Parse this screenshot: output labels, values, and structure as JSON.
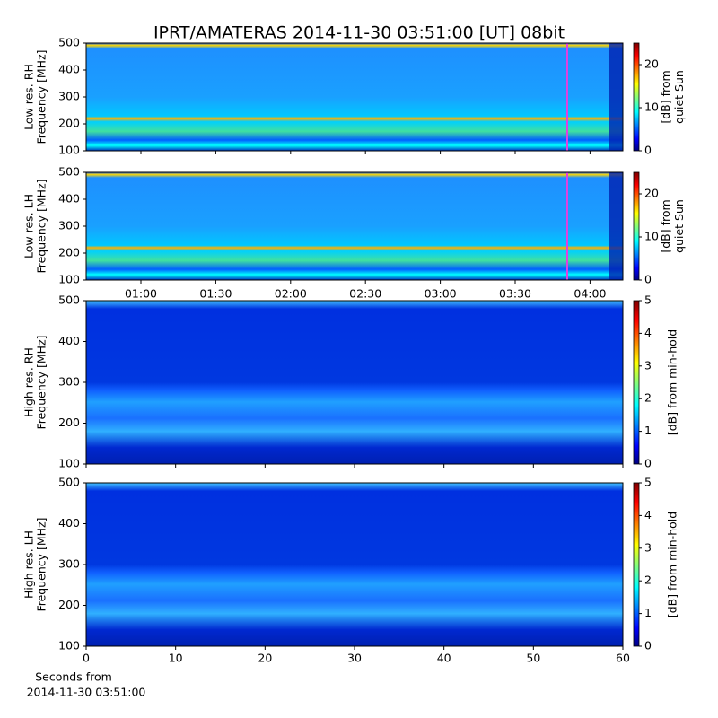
{
  "title": "IPRT/AMATERAS 2014-11-30 03:51:00 [UT]   08bit",
  "chart_data": [
    {
      "type": "heatmap",
      "ylabel": [
        "Low res. RH",
        "Frequency [MHz]"
      ],
      "ylim": [
        100,
        500
      ],
      "yticks": [
        100,
        200,
        300,
        400,
        500
      ],
      "colorbar_label": [
        "[dB] from",
        "quiet Sun"
      ],
      "clim": [
        0,
        25
      ],
      "cticks": [
        0,
        10,
        20
      ],
      "colormap": "jet"
    },
    {
      "type": "heatmap",
      "ylabel": [
        "Low res. LH",
        "Frequency [MHz]"
      ],
      "ylim": [
        100,
        500
      ],
      "yticks": [
        100,
        200,
        300,
        400,
        500
      ],
      "colorbar_label": [
        "[dB] from",
        "quiet Sun"
      ],
      "clim": [
        0,
        25
      ],
      "cticks": [
        0,
        10,
        20
      ],
      "colormap": "jet",
      "xticks": [
        "01:00",
        "01:30",
        "02:00",
        "02:30",
        "03:00",
        "03:30",
        "04:00"
      ]
    },
    {
      "type": "heatmap",
      "ylabel": [
        "High res. RH",
        "Frequency [MHz]"
      ],
      "ylim": [
        100,
        500
      ],
      "yticks": [
        100,
        200,
        300,
        400,
        500
      ],
      "colorbar_label": [
        "[dB] from min-hold"
      ],
      "clim": [
        0,
        5
      ],
      "cticks": [
        0,
        1,
        2,
        3,
        4,
        5
      ],
      "colormap": "jet"
    },
    {
      "type": "heatmap",
      "ylabel": [
        "High res. LH",
        "Frequency [MHz]"
      ],
      "ylim": [
        100,
        500
      ],
      "yticks": [
        100,
        200,
        300,
        400,
        500
      ],
      "colorbar_label": [
        "[dB] from min-hold"
      ],
      "clim": [
        0,
        5
      ],
      "cticks": [
        0,
        1,
        2,
        3,
        4,
        5
      ],
      "colormap": "jet",
      "xlim": [
        0,
        60
      ],
      "xticks": [
        0,
        10,
        20,
        30,
        40,
        50,
        60
      ],
      "xlabel": [
        "Seconds from",
        "2014-11-30 03:51:00"
      ]
    }
  ]
}
